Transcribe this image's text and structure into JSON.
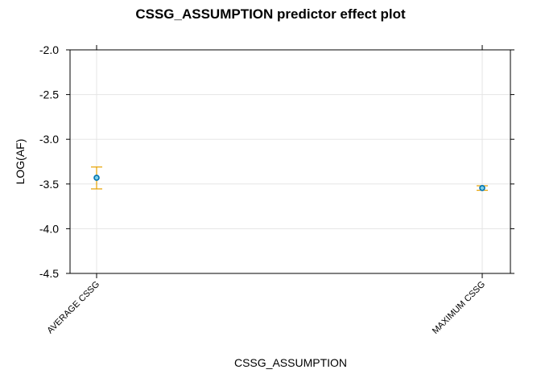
{
  "chart_data": {
    "type": "scatter",
    "title": "CSSG_ASSUMPTION predictor effect plot",
    "xlabel": "CSSG_ASSUMPTION",
    "ylabel": "LOG(AF)",
    "categories": [
      "AVERAGE CSSG",
      "MAXIMUM CSSG"
    ],
    "estimates": [
      -3.43,
      -3.545
    ],
    "lower": [
      -3.555,
      -3.57
    ],
    "upper": [
      -3.31,
      -3.52
    ],
    "ylim": [
      -4.5,
      -2.0
    ],
    "yticks": [
      -2.0,
      -2.5,
      -3.0,
      -3.5,
      -4.0,
      -4.5
    ],
    "ytick_labels": [
      "-2.0",
      "-2.5",
      "-3.0",
      "-3.5",
      "-4.0",
      "-4.5"
    ],
    "grid": true,
    "colors": {
      "point": "#1f77b4",
      "point_fill": "#0072b2",
      "errorbar": "#e6a100",
      "grid": "#e5e5e5",
      "axis": "#000000"
    }
  }
}
